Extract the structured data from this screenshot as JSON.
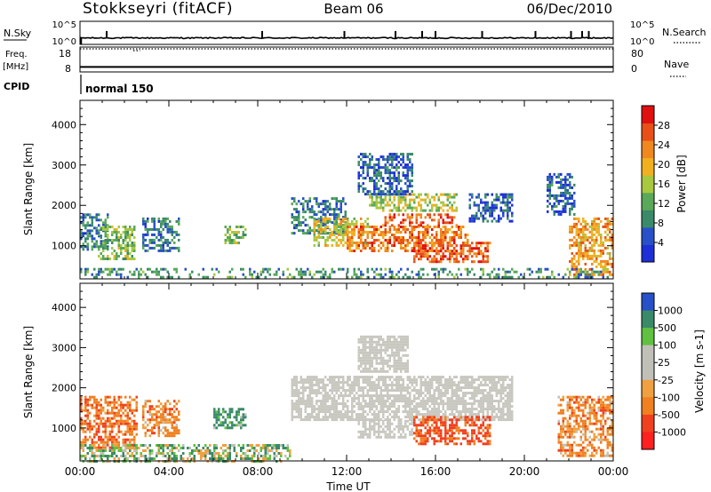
{
  "header": {
    "station": "Stokkseyri (fitACF)",
    "beam": "Beam 06",
    "date": "06/Dec/2010"
  },
  "left_labels": {
    "nsky": "N.Sky",
    "freq_line1": "Freq.",
    "freq_line2": "[MHz]",
    "cpid": "CPID"
  },
  "right_labels": {
    "nsearch": "N.Search",
    "nave": "Nave"
  },
  "cpid_text": "normal 150",
  "colors": {
    "power": [
      "#1f2fd8",
      "#2850c8",
      "#3a8a6a",
      "#5aa85a",
      "#a8c840",
      "#f0b020",
      "#f08820",
      "#e85018",
      "#e01010"
    ],
    "velocity": [
      "#ff2020",
      "#f04020",
      "#f08020",
      "#f0a040",
      "#c0c0b8",
      "#c0c0b8",
      "#60c040",
      "#3a8a6a",
      "#2850c8"
    ],
    "gray": "#c8c8c0"
  },
  "chart_data": [
    {
      "type": "line",
      "name": "noise-panel",
      "left_ticks": [
        "10^5",
        "10^0"
      ],
      "right_ticks": [
        "10^5",
        "10^0"
      ],
      "ylim_log10": [
        0,
        5
      ],
      "noise_level_log10": 1.4,
      "spikes_hours": [
        1.2,
        8.2,
        11.9,
        14.2,
        15.4,
        16.0,
        18.1,
        20.5,
        22.1,
        22.6,
        22.9
      ]
    },
    {
      "type": "line",
      "name": "freq-nave-panel",
      "left_ticks": [
        "18",
        "8"
      ],
      "right_ticks": [
        "80",
        "0"
      ],
      "frequency_mhz": 10,
      "nave": 80
    },
    {
      "type": "heatmap",
      "name": "power-panel",
      "title": "Power",
      "ylabel": "Slant Range [km]",
      "xlim_hours": [
        0,
        24
      ],
      "ylim_km": [
        180,
        4600
      ],
      "yticks": [
        1000,
        2000,
        3000,
        4000
      ],
      "colorbar": {
        "label": "Power [dB]",
        "ticks": [
          "28",
          "24",
          "20",
          "16",
          "12",
          "8",
          "4"
        ],
        "range_db": [
          0,
          32
        ]
      },
      "regions": [
        {
          "hours": [
            0,
            1.3
          ],
          "km": [
            900,
            1800
          ],
          "db": 8
        },
        {
          "hours": [
            0.8,
            2.5
          ],
          "km": [
            700,
            1500
          ],
          "db": 14
        },
        {
          "hours": [
            2.8,
            4.5
          ],
          "km": [
            900,
            1700
          ],
          "db": 8
        },
        {
          "hours": [
            6.5,
            7.5
          ],
          "km": [
            1100,
            1500
          ],
          "db": 14
        },
        {
          "hours": [
            9.5,
            12.0
          ],
          "km": [
            1300,
            2200
          ],
          "db": 8
        },
        {
          "hours": [
            10.5,
            13.0
          ],
          "km": [
            1000,
            1700
          ],
          "db": 18
        },
        {
          "hours": [
            12.0,
            17.5
          ],
          "km": [
            900,
            1500
          ],
          "db": 24
        },
        {
          "hours": [
            13.5,
            17.0
          ],
          "km": [
            1500,
            1800
          ],
          "db": 26
        },
        {
          "hours": [
            13.0,
            17.0
          ],
          "km": [
            1900,
            2300
          ],
          "db": 16
        },
        {
          "hours": [
            15.0,
            18.5
          ],
          "km": [
            600,
            1100
          ],
          "db": 26
        },
        {
          "hours": [
            12.5,
            15.0
          ],
          "km": [
            2300,
            3300
          ],
          "db": 6
        },
        {
          "hours": [
            17.5,
            19.5
          ],
          "km": [
            1600,
            2300
          ],
          "db": 6
        },
        {
          "hours": [
            21.0,
            22.3
          ],
          "km": [
            1800,
            2800
          ],
          "db": 6
        },
        {
          "hours": [
            22.0,
            24.0
          ],
          "km": [
            300,
            1700
          ],
          "db": 22
        },
        {
          "hours": [
            0,
            24.0
          ],
          "km": [
            200,
            450
          ],
          "db": 10
        }
      ]
    },
    {
      "type": "heatmap",
      "name": "velocity-panel",
      "title": "Velocity",
      "ylabel": "Slant Range [km]",
      "xlabel": "Time UT",
      "xticks": [
        "00:00",
        "04:00",
        "08:00",
        "12:00",
        "16:00",
        "20:00",
        "00:00"
      ],
      "xlim_hours": [
        0,
        24
      ],
      "ylim_km": [
        180,
        4600
      ],
      "yticks": [
        1000,
        2000,
        3000,
        4000
      ],
      "colorbar": {
        "label": "Velocity [m s-1]",
        "ticks": [
          "1000",
          "500",
          "100",
          "25",
          "-25",
          "-100",
          "-500",
          "-1000"
        ]
      },
      "regions": [
        {
          "hours": [
            0,
            2.6
          ],
          "km": [
            500,
            1800
          ],
          "v": -200
        },
        {
          "hours": [
            2.8,
            4.5
          ],
          "km": [
            800,
            1700
          ],
          "v": -150
        },
        {
          "hours": [
            6.0,
            7.5
          ],
          "km": [
            1000,
            1500
          ],
          "v": 150
        },
        {
          "hours": [
            9.5,
            19.5
          ],
          "km": [
            1200,
            2300
          ],
          "v": 0
        },
        {
          "hours": [
            12.5,
            15.0
          ],
          "km": [
            800,
            1200
          ],
          "v": 0
        },
        {
          "hours": [
            15.0,
            18.5
          ],
          "km": [
            600,
            1300
          ],
          "v": -300
        },
        {
          "hours": [
            12.5,
            14.8
          ],
          "km": [
            2400,
            3300
          ],
          "v": 0
        },
        {
          "hours": [
            21.5,
            24.0
          ],
          "km": [
            300,
            1800
          ],
          "v": -150
        },
        {
          "hours": [
            0,
            9.5
          ],
          "km": [
            200,
            600
          ],
          "v": 50
        }
      ]
    }
  ]
}
